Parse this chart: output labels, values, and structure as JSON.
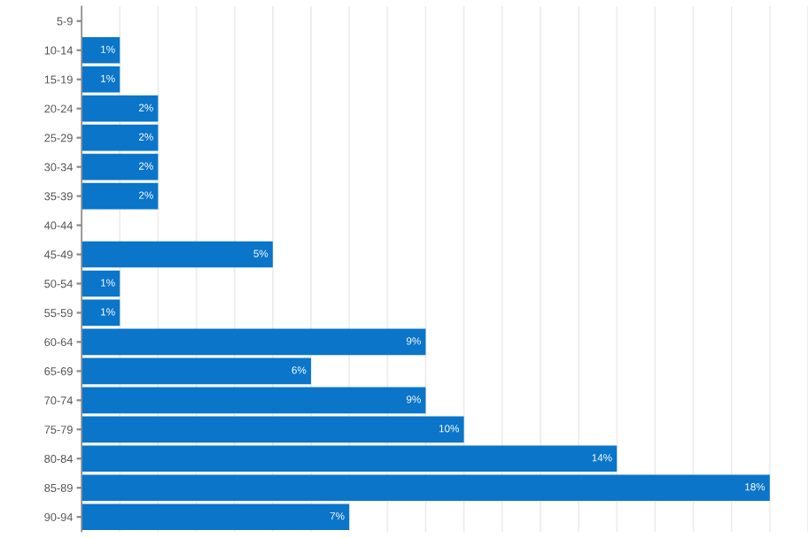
{
  "chart_data": {
    "type": "bar",
    "orientation": "horizontal",
    "categories": [
      "5-9",
      "10-14",
      "15-19",
      "20-24",
      "25-29",
      "30-34",
      "35-39",
      "40-44",
      "45-49",
      "50-54",
      "55-59",
      "60-64",
      "65-69",
      "70-74",
      "75-79",
      "80-84",
      "85-89",
      "90-94"
    ],
    "values": [
      null,
      1,
      1,
      2,
      2,
      2,
      2,
      null,
      5,
      1,
      1,
      9,
      6,
      9,
      10,
      14,
      18,
      7
    ],
    "color": "#0a75c9",
    "value_labels": [
      null,
      "1%",
      "1%",
      "2%",
      "2%",
      "2%",
      "2%",
      null,
      "5%",
      "1%",
      "1%",
      "9%",
      "6%",
      "9%",
      "10%",
      "14%",
      "18%",
      "7%"
    ],
    "xlim": [
      0,
      19
    ],
    "xticks": [
      {
        "value": 0,
        "label": null
      },
      {
        "value": 1,
        "label": null
      },
      {
        "value": 2,
        "label": null
      },
      {
        "value": 3,
        "label": null
      },
      {
        "value": 4,
        "label": null
      },
      {
        "value": 5,
        "label": null
      },
      {
        "value": 6,
        "label": null
      },
      {
        "value": 7,
        "label": null
      },
      {
        "value": 8,
        "label": null
      },
      {
        "value": 9,
        "label": null
      },
      {
        "value": 10,
        "label": null
      },
      {
        "value": 11,
        "label": null
      },
      {
        "value": 12,
        "label": null
      },
      {
        "value": 13,
        "label": null
      },
      {
        "value": 14,
        "label": null
      },
      {
        "value": 15,
        "label": null
      },
      {
        "value": 16,
        "label": null
      },
      {
        "value": 17,
        "label": null
      },
      {
        "value": 18,
        "label": null
      },
      {
        "value": 19,
        "label": null
      }
    ],
    "grid": "x",
    "tick_labels": "y"
  }
}
